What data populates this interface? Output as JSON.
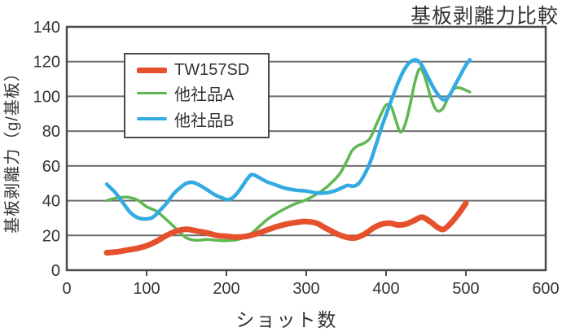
{
  "colors": {
    "grid": "#6e6e6e",
    "axis": "#4a4a4a",
    "text": "#333333",
    "background": "#ffffff",
    "series_red": "#e5512d",
    "series_green": "#5fb753",
    "series_blue": "#33aae1"
  },
  "chart_data": {
    "type": "line",
    "title": "基板剥離力比較",
    "xlabel": "ショット数",
    "ylabel": "基板剥離力（g/基板）",
    "xlim": [
      0,
      600
    ],
    "ylim": [
      0,
      140
    ],
    "xticks": [
      0,
      100,
      200,
      300,
      400,
      500,
      600
    ],
    "yticks": [
      0,
      20,
      40,
      60,
      80,
      100,
      120,
      140
    ],
    "grid": "horizontal",
    "legend_position": "upper-left-inside",
    "series": [
      {
        "name": "TW157SD",
        "color": "#e5512d",
        "width": 7,
        "points": [
          [
            50,
            10
          ],
          [
            62,
            10.5
          ],
          [
            75,
            11.5
          ],
          [
            88,
            12.5
          ],
          [
            100,
            14
          ],
          [
            112,
            16.5
          ],
          [
            125,
            20
          ],
          [
            138,
            22.5
          ],
          [
            150,
            23.5
          ],
          [
            163,
            22.5
          ],
          [
            175,
            21.5
          ],
          [
            188,
            20
          ],
          [
            200,
            19.5
          ],
          [
            213,
            19
          ],
          [
            225,
            19.5
          ],
          [
            238,
            21
          ],
          [
            250,
            23
          ],
          [
            263,
            25
          ],
          [
            275,
            26.5
          ],
          [
            288,
            27.5
          ],
          [
            300,
            28
          ],
          [
            313,
            27
          ],
          [
            325,
            24
          ],
          [
            338,
            21
          ],
          [
            350,
            19
          ],
          [
            360,
            18.5
          ],
          [
            372,
            20.5
          ],
          [
            385,
            24.5
          ],
          [
            395,
            26.5
          ],
          [
            405,
            27
          ],
          [
            415,
            26
          ],
          [
            425,
            26.5
          ],
          [
            435,
            28.5
          ],
          [
            445,
            30.5
          ],
          [
            455,
            28
          ],
          [
            465,
            24.5
          ],
          [
            472,
            23.5
          ],
          [
            480,
            26.5
          ],
          [
            490,
            32
          ],
          [
            500,
            38.5
          ]
        ]
      },
      {
        "name": "他社品A",
        "color": "#5fb753",
        "width": 3.5,
        "points": [
          [
            50,
            40
          ],
          [
            62,
            41.5
          ],
          [
            75,
            42
          ],
          [
            88,
            40.5
          ],
          [
            100,
            36.5
          ],
          [
            112,
            34
          ],
          [
            125,
            29
          ],
          [
            139,
            23
          ],
          [
            150,
            18.5
          ],
          [
            162,
            17.2
          ],
          [
            175,
            17.6
          ],
          [
            188,
            17.2
          ],
          [
            200,
            17
          ],
          [
            212,
            17.4
          ],
          [
            222,
            18.8
          ],
          [
            232,
            21.5
          ],
          [
            242,
            25.5
          ],
          [
            252,
            29.5
          ],
          [
            264,
            33
          ],
          [
            276,
            36
          ],
          [
            288,
            38.5
          ],
          [
            300,
            40.5
          ],
          [
            312,
            43.5
          ],
          [
            322,
            46.5
          ],
          [
            332,
            50.5
          ],
          [
            342,
            55.5
          ],
          [
            350,
            62
          ],
          [
            357,
            68.5
          ],
          [
            364,
            71.5
          ],
          [
            372,
            73
          ],
          [
            380,
            76
          ],
          [
            388,
            84
          ],
          [
            395,
            91
          ],
          [
            400,
            95
          ],
          [
            406,
            94.5
          ],
          [
            412,
            86.5
          ],
          [
            418,
            79.5
          ],
          [
            424,
            84
          ],
          [
            430,
            95
          ],
          [
            436,
            108
          ],
          [
            442,
            116
          ],
          [
            448,
            112
          ],
          [
            455,
            101
          ],
          [
            460,
            94.5
          ],
          [
            465,
            91.5
          ],
          [
            471,
            93
          ],
          [
            477,
            98.5
          ],
          [
            483,
            103.5
          ],
          [
            489,
            105
          ],
          [
            495,
            104.5
          ],
          [
            505,
            102.5
          ]
        ]
      },
      {
        "name": "他社品B",
        "color": "#33aae1",
        "width": 4.5,
        "points": [
          [
            50,
            49.5
          ],
          [
            60,
            45
          ],
          [
            70,
            39
          ],
          [
            80,
            33
          ],
          [
            90,
            30
          ],
          [
            100,
            29.5
          ],
          [
            108,
            30.5
          ],
          [
            116,
            34
          ],
          [
            125,
            38.5
          ],
          [
            134,
            44
          ],
          [
            142,
            47.5
          ],
          [
            150,
            50
          ],
          [
            158,
            50.5
          ],
          [
            166,
            49
          ],
          [
            175,
            46.5
          ],
          [
            185,
            43.5
          ],
          [
            195,
            41.5
          ],
          [
            202,
            40.5
          ],
          [
            210,
            42.5
          ],
          [
            218,
            47
          ],
          [
            226,
            52.5
          ],
          [
            232,
            55
          ],
          [
            240,
            53.5
          ],
          [
            250,
            51
          ],
          [
            262,
            49
          ],
          [
            275,
            47
          ],
          [
            288,
            46
          ],
          [
            300,
            45.5
          ],
          [
            312,
            44.5
          ],
          [
            325,
            44.5
          ],
          [
            335,
            45.5
          ],
          [
            345,
            47.5
          ],
          [
            352,
            48.8
          ],
          [
            359,
            48.3
          ],
          [
            366,
            50
          ],
          [
            373,
            55
          ],
          [
            380,
            62
          ],
          [
            388,
            73
          ],
          [
            395,
            83
          ],
          [
            402,
            92
          ],
          [
            410,
            102
          ],
          [
            418,
            111
          ],
          [
            425,
            117
          ],
          [
            431,
            120
          ],
          [
            437,
            121
          ],
          [
            444,
            118.5
          ],
          [
            452,
            111.5
          ],
          [
            460,
            104.5
          ],
          [
            468,
            99.5
          ],
          [
            474,
            98
          ],
          [
            480,
            101
          ],
          [
            487,
            107
          ],
          [
            494,
            113
          ],
          [
            500,
            118
          ],
          [
            505,
            121
          ]
        ]
      }
    ]
  },
  "legend": {
    "items": [
      {
        "label": "TW157SD"
      },
      {
        "label": "他社品A"
      },
      {
        "label": "他社品B"
      }
    ]
  }
}
